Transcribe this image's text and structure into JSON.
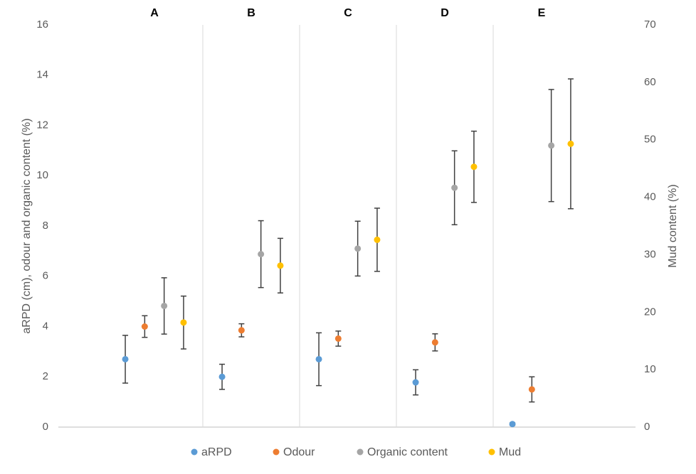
{
  "chart_data": {
    "type": "scatter",
    "categories": [
      "A",
      "B",
      "C",
      "D",
      "E"
    ],
    "y_label": "aRPD (cm), odour and organic content (%)",
    "y2_label": "Mud content (%)",
    "ylim": [
      0,
      16
    ],
    "yticks": [
      0,
      2,
      4,
      6,
      8,
      10,
      12,
      14,
      16
    ],
    "y2lim": [
      0,
      70
    ],
    "y2ticks": [
      0,
      10,
      20,
      30,
      40,
      50,
      60,
      70
    ],
    "legend": "bottom",
    "series": [
      {
        "name": "aRPD",
        "color": "#5b9bd5",
        "values": [
          2.7,
          2.0,
          2.7,
          1.78,
          0.12
        ],
        "errors": [
          0.95,
          0.5,
          1.05,
          0.5,
          0.05
        ]
      },
      {
        "name": "Odour",
        "color": "#ed7d31",
        "values": [
          4.0,
          3.85,
          3.52,
          3.37,
          1.5
        ],
        "errors": [
          0.43,
          0.26,
          0.3,
          0.34,
          0.5
        ]
      },
      {
        "name": "Organic content",
        "color": "#a5a5a5",
        "values": [
          4.82,
          6.88,
          7.1,
          9.52,
          11.2
        ],
        "errors": [
          1.12,
          1.33,
          1.09,
          1.47,
          2.23
        ]
      },
      {
        "name": "Mud",
        "color": "#ffc000",
        "axis": "y2",
        "values": [
          18.2,
          28.1,
          32.6,
          45.3,
          49.3
        ],
        "errors": [
          4.6,
          4.75,
          5.5,
          6.2,
          11.3
        ]
      }
    ]
  }
}
